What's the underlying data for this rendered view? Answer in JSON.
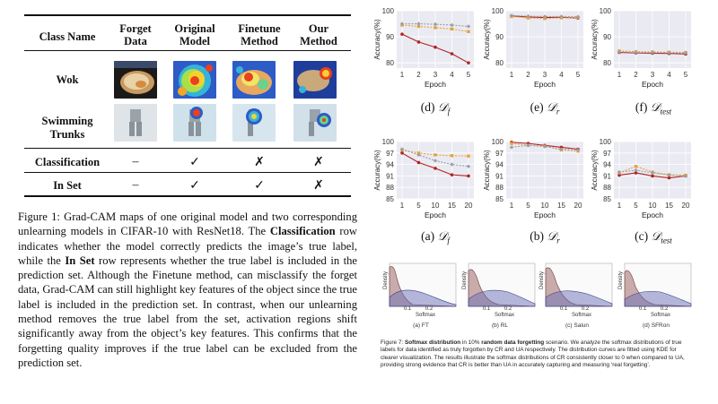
{
  "table": {
    "headers": {
      "class_name": "Class Name",
      "forget_data_1": "Forget",
      "forget_data_2": "Data",
      "original_model_1": "Original",
      "original_model_2": "Model",
      "finetune_method_1": "Finetune",
      "finetune_method_2": "Method",
      "our_method_1": "Our",
      "our_method_2": "Method"
    },
    "rows": {
      "wok": "Wok",
      "swimming_1": "Swimming",
      "swimming_2": "Trunks",
      "classification": {
        "label": "Classification",
        "forget": "–",
        "original": "✓",
        "finetune": "✗",
        "ours": "✗"
      },
      "in_set": {
        "label": "In Set",
        "forget": "–",
        "original": "✓",
        "finetune": "✓",
        "ours": "✗"
      }
    }
  },
  "caption1": {
    "lead": "Figure 1:  Grad-CAM maps of one original model and two corresponding unlearning models in CIFAR-10 with ResNet18. The ",
    "b1": "Classification",
    "mid1": " row indicates whether the model correctly predicts the image’s true label, while the ",
    "b2": "In Set",
    "rest": " row represents whether the true label is included in the prediction set. Although the Finetune method, can misclassify the forget data, Grad-CAM can still highlight key features of the object since the true label is included in the prediction set. In contrast, when our unlearning method removes the true label from the set, activation regions shift significantly away from the object’s key features.  This confirms that the forgetting quality improves if the true label can be excluded from the prediction set."
  },
  "charts_top": {
    "ylabel": "Accuracy(%)",
    "xlabel": "Epoch",
    "captions": [
      {
        "prefix": "(d) ",
        "sym": "𝒟",
        "sub": "f"
      },
      {
        "prefix": "(e) ",
        "sym": "𝒟",
        "sub": "r"
      },
      {
        "prefix": "(f) ",
        "sym": "𝒟",
        "sub": "test"
      }
    ]
  },
  "charts_bottom": {
    "ylabel": "Accuracy(%)",
    "xlabel": "Epoch",
    "captions": [
      {
        "prefix": "(a) ",
        "sym": "𝒟",
        "sub": "f"
      },
      {
        "prefix": "(b) ",
        "sym": "𝒟",
        "sub": "r"
      },
      {
        "prefix": "(c) ",
        "sym": "𝒟",
        "sub": "test"
      }
    ]
  },
  "chart_data": [
    {
      "type": "line",
      "title": "(d) D_f",
      "xlabel": "Epoch",
      "ylabel": "Accuracy(%)",
      "x": [
        1,
        2,
        3,
        4,
        5
      ],
      "xticks": [
        "1",
        "2",
        "3",
        "4",
        "5"
      ],
      "yticks": [
        "100",
        "90",
        "80"
      ],
      "ylim": [
        78,
        100
      ],
      "series": [
        {
          "name": "s1",
          "color": "#b22222",
          "values": [
            91,
            88,
            86,
            83.5,
            80
          ]
        },
        {
          "name": "s2",
          "color": "#e8a23a",
          "values": [
            94.5,
            94,
            93.5,
            93,
            92
          ]
        },
        {
          "name": "s3",
          "color": "#9aa0a6",
          "values": [
            95,
            95,
            94.8,
            94.5,
            94
          ]
        }
      ]
    },
    {
      "type": "line",
      "title": "(e) D_r",
      "xlabel": "Epoch",
      "ylabel": "Accuracy(%)",
      "x": [
        1,
        2,
        3,
        4,
        5
      ],
      "xticks": [
        "1",
        "2",
        "3",
        "4",
        "5"
      ],
      "yticks": [
        "100",
        "90",
        "80"
      ],
      "ylim": [
        78,
        100
      ],
      "series": [
        {
          "name": "s1",
          "color": "#b22222",
          "values": [
            98,
            97.6,
            97.4,
            97.5,
            97.2
          ]
        },
        {
          "name": "s2",
          "color": "#e8a23a",
          "values": [
            97.8,
            97.2,
            97,
            97.3,
            97.4
          ]
        },
        {
          "name": "s3",
          "color": "#9aa0a6",
          "values": [
            98.2,
            97.9,
            97.8,
            97.8,
            97.7
          ]
        }
      ]
    },
    {
      "type": "line",
      "title": "(f) D_test",
      "xlabel": "Epoch",
      "ylabel": "Accuracy(%)",
      "x": [
        1,
        2,
        3,
        4,
        5
      ],
      "xticks": [
        "1",
        "2",
        "3",
        "4",
        "5"
      ],
      "yticks": [
        "100",
        "90",
        "80"
      ],
      "ylim": [
        78,
        100
      ],
      "series": [
        {
          "name": "s1",
          "color": "#b22222",
          "values": [
            84,
            83.8,
            83.7,
            83.6,
            83.4
          ]
        },
        {
          "name": "s2",
          "color": "#e8a23a",
          "values": [
            84.6,
            84.3,
            84.2,
            84.1,
            84
          ]
        },
        {
          "name": "s3",
          "color": "#9aa0a6",
          "values": [
            84.2,
            84,
            84,
            83.9,
            83.8
          ]
        }
      ]
    },
    {
      "type": "line",
      "title": "(a) D_f",
      "xlabel": "Epoch",
      "ylabel": "Accuracy(%)",
      "x": [
        1,
        5,
        10,
        15,
        20
      ],
      "xticks": [
        "1",
        "5",
        "10",
        "15",
        "20"
      ],
      "yticks": [
        "100",
        "97",
        "94",
        "91",
        "88",
        "85"
      ],
      "ylim": [
        85,
        100
      ],
      "series": [
        {
          "name": "s1",
          "color": "#b22222",
          "values": [
            97,
            94.5,
            93,
            91.3,
            91
          ]
        },
        {
          "name": "s2",
          "color": "#e8a23a",
          "values": [
            97.8,
            97,
            96.5,
            96.3,
            96.2
          ]
        },
        {
          "name": "s3",
          "color": "#9aa0a6",
          "values": [
            98,
            96.5,
            95,
            94,
            93.5
          ]
        }
      ]
    },
    {
      "type": "line",
      "title": "(b) D_r",
      "xlabel": "Epoch",
      "ylabel": "Accuracy(%)",
      "x": [
        1,
        5,
        10,
        15,
        20
      ],
      "xticks": [
        "1",
        "5",
        "10",
        "15",
        "20"
      ],
      "yticks": [
        "100",
        "97",
        "94",
        "91",
        "88",
        "85"
      ],
      "ylim": [
        85,
        100
      ],
      "series": [
        {
          "name": "s1",
          "color": "#b22222",
          "values": [
            99.8,
            99.5,
            99,
            98.5,
            98
          ]
        },
        {
          "name": "s2",
          "color": "#e8a23a",
          "values": [
            99.5,
            99,
            98.8,
            97.8,
            97.5
          ]
        },
        {
          "name": "s3",
          "color": "#9aa0a6",
          "values": [
            98.5,
            99,
            98.7,
            98,
            97.8
          ]
        }
      ]
    },
    {
      "type": "line",
      "title": "(c) D_test",
      "xlabel": "Epoch",
      "ylabel": "Accuracy(%)",
      "x": [
        1,
        5,
        10,
        15,
        20
      ],
      "xticks": [
        "1",
        "5",
        "10",
        "15",
        "20"
      ],
      "yticks": [
        "100",
        "97",
        "94",
        "91",
        "88",
        "85"
      ],
      "ylim": [
        85,
        100
      ],
      "series": [
        {
          "name": "s1",
          "color": "#b22222",
          "values": [
            91.2,
            91.8,
            91,
            90.5,
            91
          ]
        },
        {
          "name": "s2",
          "color": "#e8a23a",
          "values": [
            91.8,
            93.5,
            92,
            91.3,
            91.2
          ]
        },
        {
          "name": "s3",
          "color": "#9aa0a6",
          "values": [
            92,
            92.5,
            91.8,
            91.2,
            91
          ]
        }
      ]
    }
  ],
  "softmax": {
    "ylabel": "Density",
    "xlabel": "Softmax",
    "panels": [
      {
        "label": "(a) FT",
        "tick1": "0.1",
        "tick2": "0.2"
      },
      {
        "label": "(b) RL",
        "tick1": "0.1",
        "tick2": "0.2"
      },
      {
        "label": "(c) Salun",
        "tick1": "0.1",
        "tick2": "0.2"
      },
      {
        "label": "(d) SFRon",
        "tick1": "0.1",
        "tick2": "0.2"
      }
    ],
    "colors": {
      "cr": "#a06a6a",
      "ua": "#6c72b8"
    }
  },
  "caption7": {
    "lead": "Figure 7: ",
    "b1": "Softmax distribution",
    "mid1": " in 10% ",
    "b2": "random data forgetting",
    "rest": " scenario. We analyze the softmax distributions of true labels for data identified as truly forgotten by CR and UA respectively. The distribution curves are fitted using KDE for clearer visualization. The results illustrate the softmax distributions of CR consistently closer to 0 when compared to UA, providing strong evidence that CR is better than UA in accurately capturing and measuring ‘real forgetting’."
  }
}
